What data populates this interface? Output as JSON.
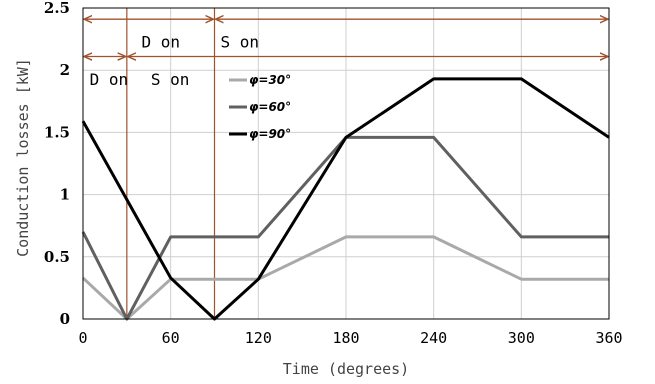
{
  "chart_data": {
    "type": "line",
    "title": "",
    "xlabel": "Time (degrees)",
    "ylabel": "Conduction losses [kW]",
    "xlim": [
      0,
      360
    ],
    "ylim": [
      0,
      2.5
    ],
    "xticks": [
      0,
      60,
      120,
      180,
      240,
      300,
      360
    ],
    "yticks": [
      0,
      0.5,
      1,
      1.5,
      2,
      2.5
    ],
    "ytick_labels": [
      "0",
      "0.5",
      "1",
      "1.5",
      "2",
      "2.5"
    ],
    "grid": true,
    "legend_position": "center",
    "series": [
      {
        "name": "φ=30°",
        "color": "#a9a9a9",
        "x": [
          0,
          30,
          60,
          120,
          180,
          240,
          300,
          360
        ],
        "y": [
          0.33,
          0,
          0.32,
          0.32,
          0.66,
          0.66,
          0.32,
          0.32
        ]
      },
      {
        "name": "φ=60°",
        "color": "#606060",
        "x": [
          0,
          30,
          60,
          120,
          180,
          240,
          300,
          360
        ],
        "y": [
          0.7,
          0,
          0.66,
          0.66,
          1.46,
          1.46,
          0.66,
          0.66
        ]
      },
      {
        "name": "φ=90°",
        "color": "#000000",
        "x": [
          0,
          60,
          90,
          120,
          180,
          240,
          300,
          360
        ],
        "y": [
          1.59,
          0.33,
          0,
          0.32,
          1.46,
          1.93,
          1.93,
          1.46
        ]
      }
    ],
    "annotations": {
      "vlines_x": [
        30,
        90
      ],
      "arrow_rows": [
        {
          "y": 2.41,
          "from": 0,
          "split": 90,
          "to": 360,
          "labels": [
            "D on",
            "S on"
          ],
          "label_y": 2.23
        },
        {
          "y": 2.11,
          "from": 0,
          "split": 30,
          "to": 360,
          "labels": [
            "D on",
            "S on"
          ],
          "label_y": 1.93
        }
      ]
    }
  }
}
